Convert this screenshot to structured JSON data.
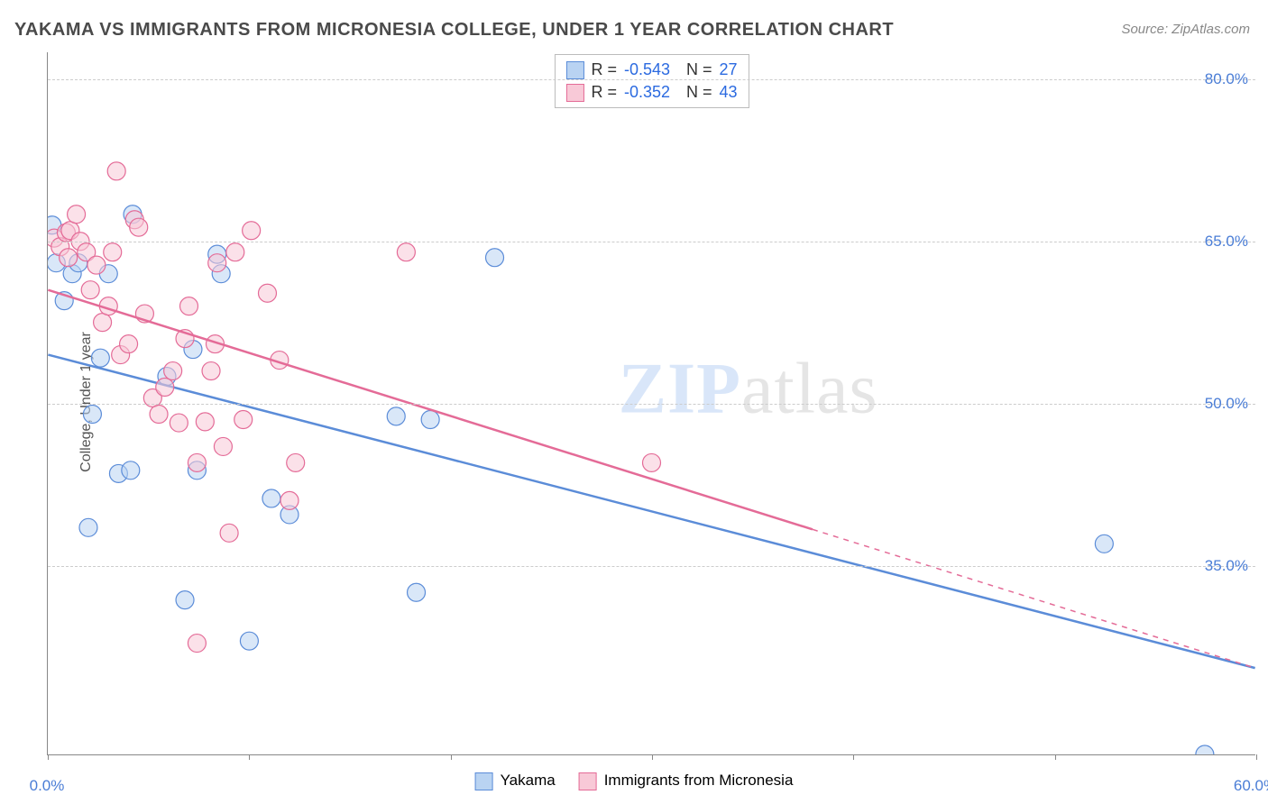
{
  "title": "YAKAMA VS IMMIGRANTS FROM MICRONESIA COLLEGE, UNDER 1 YEAR CORRELATION CHART",
  "source": "Source: ZipAtlas.com",
  "ylabel": "College, Under 1 year",
  "watermark": {
    "zip": "ZIP",
    "atlas": "atlas"
  },
  "chart": {
    "type": "scatter",
    "xlim": [
      0,
      60
    ],
    "ylim": [
      17.5,
      82.5
    ],
    "x_ticks": [
      0,
      10,
      20,
      30,
      40,
      50,
      60
    ],
    "x_tick_labels": [
      "0.0%",
      "",
      "",
      "",
      "",
      "",
      "60.0%"
    ],
    "y_ticks": [
      35.0,
      50.0,
      65.0,
      80.0
    ],
    "y_tick_labels": [
      "35.0%",
      "50.0%",
      "65.0%",
      "80.0%"
    ],
    "background_color": "#ffffff",
    "grid_color": "#cccccc",
    "axis_color": "#888888",
    "tick_label_color": "#4a7dd6",
    "marker_radius": 10,
    "marker_opacity": 0.55,
    "line_width": 2.5,
    "series": [
      {
        "id": "yakama",
        "label": "Yakama",
        "color_fill": "#b9d3f2",
        "color_stroke": "#5b8cd8",
        "R": "-0.543",
        "N": "27",
        "trend": {
          "x1": 0,
          "y1": 54.5,
          "x2": 60,
          "y2": 25.5,
          "solid_to_x": 60
        },
        "points": [
          [
            0.2,
            66.5
          ],
          [
            0.4,
            63.0
          ],
          [
            0.8,
            59.5
          ],
          [
            1.2,
            62.0
          ],
          [
            1.5,
            63.0
          ],
          [
            3.0,
            62.0
          ],
          [
            2.2,
            49.0
          ],
          [
            2.6,
            54.2
          ],
          [
            3.5,
            43.5
          ],
          [
            4.1,
            43.8
          ],
          [
            4.2,
            67.5
          ],
          [
            5.9,
            52.5
          ],
          [
            7.2,
            55.0
          ],
          [
            8.4,
            63.8
          ],
          [
            8.6,
            62.0
          ],
          [
            6.8,
            31.8
          ],
          [
            7.4,
            43.8
          ],
          [
            10.0,
            28.0
          ],
          [
            11.1,
            41.2
          ],
          [
            12.0,
            39.7
          ],
          [
            17.3,
            48.8
          ],
          [
            18.3,
            32.5
          ],
          [
            19.0,
            48.5
          ],
          [
            22.2,
            63.5
          ],
          [
            52.5,
            37.0
          ],
          [
            57.5,
            17.5
          ],
          [
            2.0,
            38.5
          ]
        ]
      },
      {
        "id": "micronesia",
        "label": "Immigrants from Micronesia",
        "color_fill": "#f8c9d7",
        "color_stroke": "#e46b97",
        "R": "-0.352",
        "N": "43",
        "trend": {
          "x1": 0,
          "y1": 60.5,
          "x2": 60,
          "y2": 25.5,
          "solid_to_x": 38
        },
        "points": [
          [
            0.3,
            65.3
          ],
          [
            0.6,
            64.5
          ],
          [
            0.9,
            65.8
          ],
          [
            1.0,
            63.5
          ],
          [
            1.1,
            66.0
          ],
          [
            1.4,
            67.5
          ],
          [
            1.6,
            65.0
          ],
          [
            1.9,
            64.0
          ],
          [
            2.1,
            60.5
          ],
          [
            2.4,
            62.8
          ],
          [
            2.7,
            57.5
          ],
          [
            3.0,
            59.0
          ],
          [
            3.2,
            64.0
          ],
          [
            3.4,
            71.5
          ],
          [
            3.6,
            54.5
          ],
          [
            4.0,
            55.5
          ],
          [
            4.3,
            67.0
          ],
          [
            4.5,
            66.3
          ],
          [
            4.8,
            58.3
          ],
          [
            5.2,
            50.5
          ],
          [
            5.5,
            49.0
          ],
          [
            5.8,
            51.5
          ],
          [
            6.2,
            53.0
          ],
          [
            6.5,
            48.2
          ],
          [
            6.8,
            56.0
          ],
          [
            7.0,
            59.0
          ],
          [
            7.4,
            44.5
          ],
          [
            7.8,
            48.3
          ],
          [
            8.1,
            53.0
          ],
          [
            8.4,
            63.0
          ],
          [
            8.7,
            46.0
          ],
          [
            9.0,
            38.0
          ],
          [
            9.3,
            64.0
          ],
          [
            9.7,
            48.5
          ],
          [
            10.1,
            66.0
          ],
          [
            10.9,
            60.2
          ],
          [
            11.5,
            54.0
          ],
          [
            12.0,
            41.0
          ],
          [
            12.3,
            44.5
          ],
          [
            7.4,
            27.8
          ],
          [
            17.8,
            64.0
          ],
          [
            30.0,
            44.5
          ],
          [
            8.3,
            55.5
          ]
        ]
      }
    ]
  },
  "legend_labels": {
    "R": "R =",
    "N": "N ="
  }
}
